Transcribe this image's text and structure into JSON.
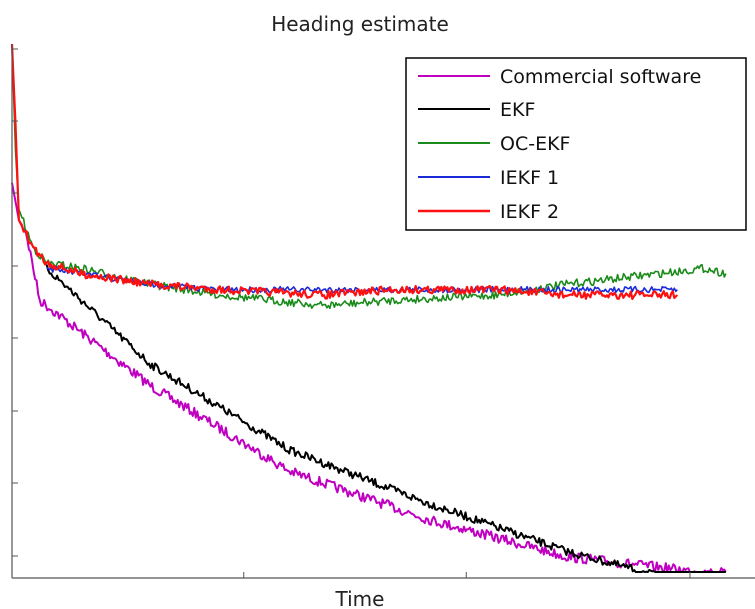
{
  "chart_data": {
    "type": "line",
    "title": "Heading estimate",
    "xlabel": "Time",
    "ylabel": "",
    "xlim": [
      0,
      100
    ],
    "ylim": [
      0,
      100
    ],
    "x_ticks": [
      33,
      67,
      100
    ],
    "legend_placement": "top-right",
    "grid": false,
    "series": [
      {
        "name": "Commercial software",
        "color": "#c000c0",
        "points": [
          [
            0,
            74
          ],
          [
            1,
            67
          ],
          [
            2,
            65
          ],
          [
            4,
            52
          ],
          [
            20,
            36
          ],
          [
            40,
            20
          ],
          [
            60,
            11
          ],
          [
            80,
            4
          ],
          [
            100,
            1
          ],
          [
            103,
            1
          ]
        ]
      },
      {
        "name": "EKF",
        "color": "#000000",
        "points": [
          [
            5,
            58
          ],
          [
            20,
            40
          ],
          [
            40,
            24
          ],
          [
            60,
            14
          ],
          [
            80,
            5
          ],
          [
            100,
            -2
          ],
          [
            103,
            -2
          ]
        ]
      },
      {
        "name": "OC-EKF",
        "color": "#1a8a1a",
        "points": [
          [
            0,
            100
          ],
          [
            0.5,
            80
          ],
          [
            1,
            69
          ],
          [
            3,
            62
          ],
          [
            5,
            59
          ],
          [
            10,
            58
          ],
          [
            20,
            55
          ],
          [
            30,
            53
          ],
          [
            45,
            51
          ],
          [
            55,
            52
          ],
          [
            70,
            53
          ],
          [
            80,
            55
          ],
          [
            100,
            58
          ],
          [
            103,
            57
          ]
        ]
      },
      {
        "name": "IEKF 1",
        "color": "#1a2ad8",
        "points": [
          [
            5,
            58
          ],
          [
            20,
            55
          ],
          [
            30,
            54
          ],
          [
            45,
            54
          ],
          [
            55,
            54
          ],
          [
            70,
            54
          ],
          [
            80,
            54
          ],
          [
            96,
            54
          ]
        ]
      },
      {
        "name": "IEKF 2",
        "color": "#ff1010",
        "points": [
          [
            0,
            100
          ],
          [
            0.5,
            85
          ],
          [
            1,
            67
          ],
          [
            3,
            62
          ],
          [
            5,
            59
          ],
          [
            10,
            57
          ],
          [
            20,
            55
          ],
          [
            30,
            54
          ],
          [
            45,
            53
          ],
          [
            55,
            54
          ],
          [
            70,
            54
          ],
          [
            80,
            53
          ],
          [
            96,
            53
          ]
        ]
      }
    ]
  }
}
